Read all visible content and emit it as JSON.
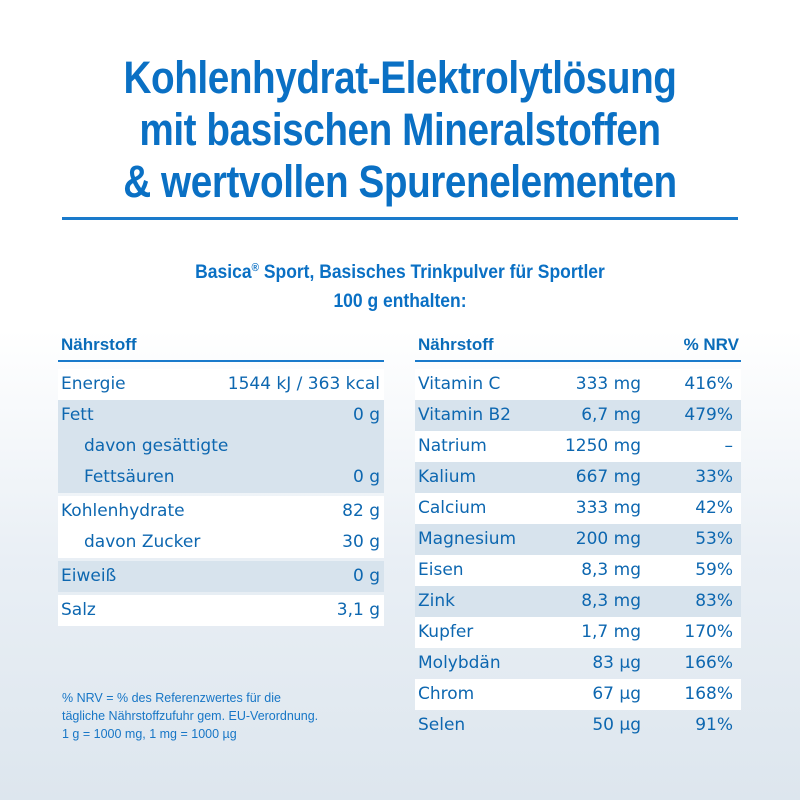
{
  "title": {
    "lines": [
      "Kohlenhydrat-Elektrolytlösung",
      "mit basischen Mineralstoffen",
      "& wertvollen Spurenelementen"
    ]
  },
  "subtitle": {
    "brand": "Basica",
    "registered_mark": "®",
    "line1_rest": " Sport, Basisches Trinkpulver für Sportler",
    "line2": "100 g enthalten:"
  },
  "left_table": {
    "header": {
      "nutrient": "Nährstoff"
    },
    "rows": [
      {
        "name": "Energie",
        "value": "1544 kJ / 363 kcal"
      },
      {
        "name": "Fett",
        "value": "0 g"
      },
      {
        "name": "davon gesättigte",
        "value": ""
      },
      {
        "name": "Fettsäuren",
        "value": "0 g"
      },
      {
        "name": "Kohlenhydrate",
        "value": "82 g"
      },
      {
        "name": "davon Zucker",
        "value": "30 g"
      },
      {
        "name": "Eiweiß",
        "value": "0 g"
      },
      {
        "name": "Salz",
        "value": "3,1 g"
      }
    ]
  },
  "right_table": {
    "header": {
      "nutrient": "Nährstoff",
      "nrv": "% NRV"
    },
    "rows": [
      {
        "name": "Vitamin C",
        "amount": "333 mg",
        "nrv": "416%"
      },
      {
        "name": "Vitamin B2",
        "amount": "6,7 mg",
        "nrv": "479%"
      },
      {
        "name": "Natrium",
        "amount": "1250 mg",
        "nrv": "–"
      },
      {
        "name": "Kalium",
        "amount": "667 mg",
        "nrv": "33%"
      },
      {
        "name": "Calcium",
        "amount": "333 mg",
        "nrv": "42%"
      },
      {
        "name": "Magnesium",
        "amount": "200 mg",
        "nrv": "53%"
      },
      {
        "name": "Eisen",
        "amount": "8,3 mg",
        "nrv": "59%"
      },
      {
        "name": "Zink",
        "amount": "8,3 mg",
        "nrv": "83%"
      },
      {
        "name": "Kupfer",
        "amount": "1,7 mg",
        "nrv": "170%"
      },
      {
        "name": "Molybdän",
        "amount": "83 µg",
        "nrv": "166%"
      },
      {
        "name": "Chrom",
        "amount": "67 µg",
        "nrv": "168%"
      },
      {
        "name": "Selen",
        "amount": "50 µg",
        "nrv": "91%"
      }
    ]
  },
  "footnote": {
    "lines": [
      "% NRV = % des Referenzwertes für die",
      "tägliche Nährstoffzufuhr gem. EU-Verordnung.",
      "1 g = 1000 mg, 1 mg = 1000 µg"
    ]
  },
  "colors": {
    "primary_blue": "#0a70c4",
    "rule_blue": "#1a7acb",
    "row_shade": "#d7e3ed",
    "background_bottom": "#dde6ee"
  }
}
